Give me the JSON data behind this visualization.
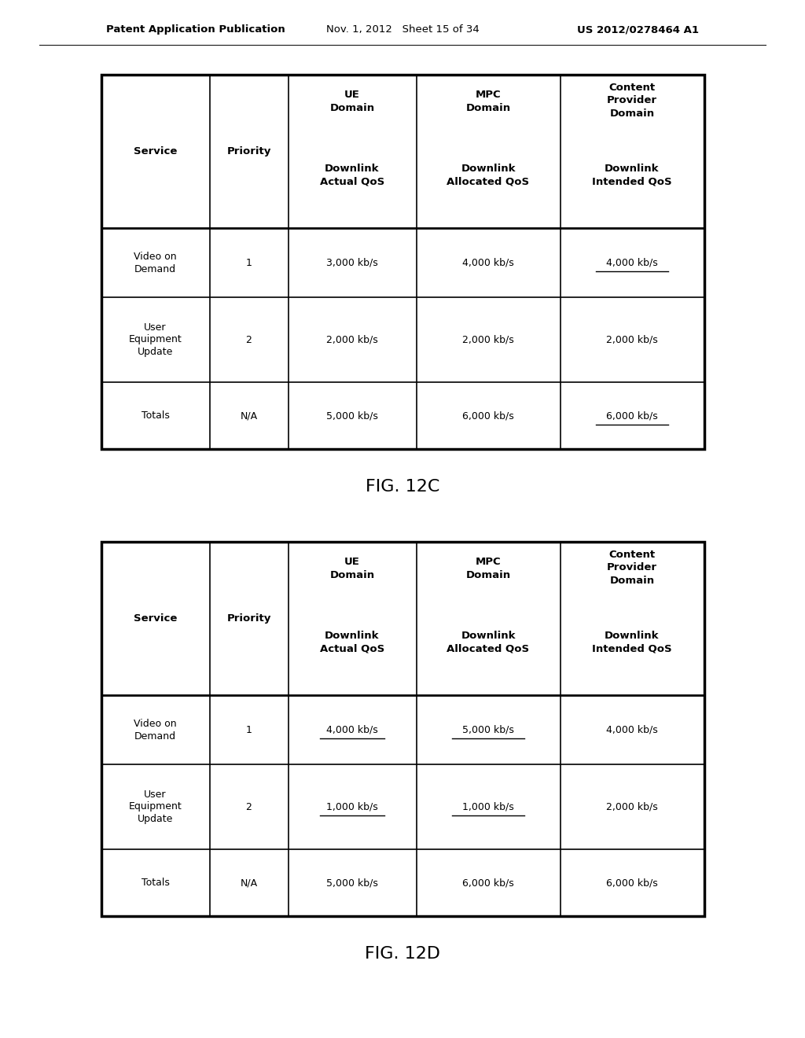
{
  "page_header": {
    "left": "Patent Application Publication",
    "center": "Nov. 1, 2012   Sheet 15 of 34",
    "right": "US 2012/0278464 A1"
  },
  "table1": {
    "caption": "FIG. 12C",
    "rows": [
      [
        "Video on\nDemand",
        "1",
        "3,000 kb/s",
        "4,000 kb/s",
        "4,000 kb/s"
      ],
      [
        "User\nEquipment\nUpdate",
        "2",
        "2,000 kb/s",
        "2,000 kb/s",
        "2,000 kb/s"
      ],
      [
        "Totals",
        "N/A",
        "5,000 kb/s",
        "6,000 kb/s",
        "6,000 kb/s"
      ]
    ],
    "underlined": [
      [
        0,
        4
      ],
      [
        2,
        4
      ]
    ]
  },
  "table2": {
    "caption": "FIG. 12D",
    "rows": [
      [
        "Video on\nDemand",
        "1",
        "4,000 kb/s",
        "5,000 kb/s",
        "4,000 kb/s"
      ],
      [
        "User\nEquipment\nUpdate",
        "2",
        "1,000 kb/s",
        "1,000 kb/s",
        "2,000 kb/s"
      ],
      [
        "Totals",
        "N/A",
        "5,000 kb/s",
        "6,000 kb/s",
        "6,000 kb/s"
      ]
    ],
    "underlined": [
      [
        0,
        2
      ],
      [
        0,
        3
      ],
      [
        1,
        2
      ],
      [
        1,
        3
      ]
    ]
  }
}
